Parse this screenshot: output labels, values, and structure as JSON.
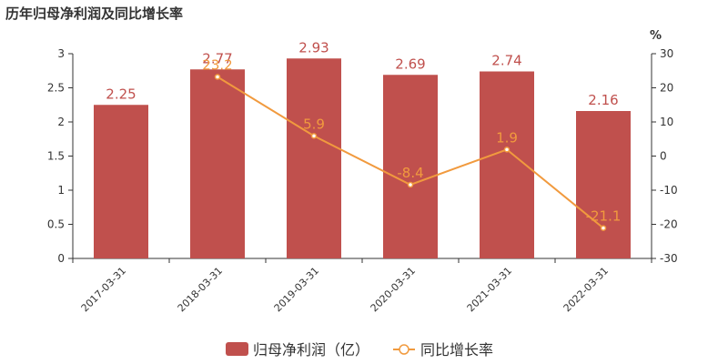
{
  "title": "历年归母净利润及同比增长率",
  "colors": {
    "bar": "#c0504d",
    "line": "#f19a3e",
    "axis": "#333333"
  },
  "chart_data": {
    "type": "bar",
    "categories": [
      "2017-03-31",
      "2018-03-31",
      "2019-03-31",
      "2020-03-31",
      "2021-03-31",
      "2022-03-31"
    ],
    "series": [
      {
        "name": "归母净利润（亿）",
        "type": "bar",
        "axis": "left",
        "values": [
          2.25,
          2.77,
          2.93,
          2.69,
          2.74,
          2.16
        ]
      },
      {
        "name": "同比增长率",
        "type": "line",
        "axis": "right",
        "values": [
          null,
          23.2,
          5.9,
          -8.4,
          1.9,
          -21.1
        ]
      }
    ],
    "left_axis": {
      "ylim": [
        0,
        3
      ],
      "ticks": [
        "0",
        "0.5",
        "1",
        "1.5",
        "2",
        "2.5",
        "3"
      ]
    },
    "right_axis": {
      "unit": "%",
      "ylim": [
        -30,
        30
      ],
      "ticks": [
        "-30",
        "-20",
        "-10",
        "0",
        "10",
        "20",
        "30"
      ]
    },
    "data_labels": {
      "bar": [
        "2.25",
        "2.77",
        "2.93",
        "2.69",
        "2.74",
        "2.16"
      ],
      "line": [
        "",
        "23.2",
        "5.9",
        "-8.4",
        "1.9",
        "-21.1"
      ]
    },
    "legend": {
      "position": "bottom-center",
      "items": [
        "归母净利润（亿）",
        "同比增长率"
      ]
    },
    "grid": false
  }
}
